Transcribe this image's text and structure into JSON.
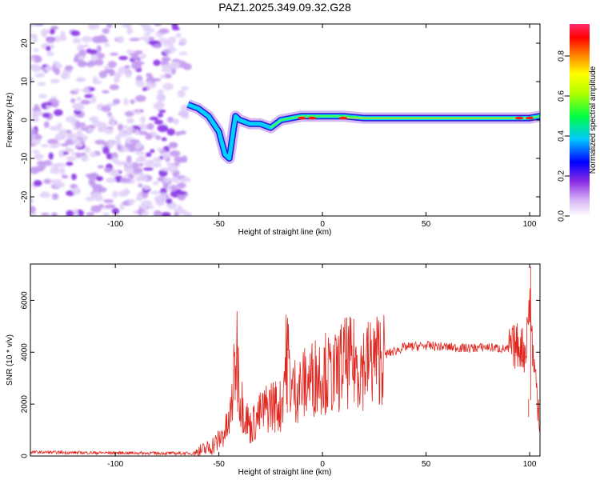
{
  "figure": {
    "title": "PAZ1.2025.349.09.32.G28"
  },
  "colors": {
    "snr_line": "#e0271f",
    "spectrum_low": "#d9c8f5",
    "spectrum_mid": "#7a1fe0",
    "trace_high": "#ff1a00"
  },
  "colorbar": {
    "label": "Normalized spectral amplitude",
    "ticks": [
      "0.0",
      "0.2",
      "0.4",
      "0.6",
      "0.8"
    ],
    "range": [
      0.0,
      0.96
    ]
  },
  "chart_data": [
    {
      "type": "heatmap",
      "title": "PAZ1.2025.349.09.32.G28",
      "xlabel": "Height of straight line (km)",
      "ylabel": "Frequency (Hz)",
      "xlim": [
        -141,
        105
      ],
      "ylim": [
        -25,
        25
      ],
      "xticks": [
        -100,
        -50,
        0,
        50,
        100
      ],
      "xtick_labels": [
        "-100",
        "-50",
        "0",
        "50",
        "100"
      ],
      "yticks": [
        -20,
        -10,
        0,
        10,
        20
      ],
      "ytick_labels": [
        "-20",
        "-10",
        "0",
        "10",
        "20"
      ],
      "noise_region_x": [
        -141,
        -65
      ],
      "signal_trace": {
        "description_points_x": [
          -65,
          -60,
          -55,
          -50,
          -47,
          -45,
          -42,
          -40,
          -35,
          -30,
          -25,
          -20,
          -10,
          0,
          10,
          20,
          50,
          100,
          105
        ],
        "description_points_y": [
          4,
          3,
          1,
          -3,
          -9,
          -10,
          1,
          0,
          -1,
          -1,
          -2,
          0,
          1,
          1,
          1,
          0.5,
          0.5,
          0.5,
          1
        ]
      }
    },
    {
      "type": "line",
      "title": "",
      "xlabel": "Height of straight line (km)",
      "ylabel": "SNR (10 * v/v)",
      "xlim": [
        -141,
        105
      ],
      "ylim": [
        0,
        7400
      ],
      "xticks": [
        -100,
        -50,
        0,
        50,
        100
      ],
      "xtick_labels": [
        "-100",
        "-50",
        "0",
        "50",
        "100"
      ],
      "yticks": [
        0,
        2000,
        4000,
        6000
      ],
      "ytick_labels": [
        "0",
        "2000",
        "4000",
        "6000"
      ],
      "series": [
        {
          "name": "SNR",
          "x": [
            -141,
            -120,
            -100,
            -80,
            -62,
            -55,
            -50,
            -45,
            -41,
            -40,
            -35,
            -30,
            -25,
            -20,
            -17,
            -15,
            -10,
            -5,
            0,
            5,
            10,
            20,
            30,
            40,
            50,
            60,
            70,
            80,
            90,
            95,
            98,
            100,
            102,
            105
          ],
          "y": [
            150,
            130,
            120,
            110,
            100,
            300,
            600,
            1200,
            4250,
            2300,
            1100,
            1600,
            2000,
            1900,
            4150,
            2500,
            2700,
            3000,
            3300,
            3000,
            3600,
            3500,
            3900,
            4200,
            4250,
            4200,
            4150,
            4200,
            4100,
            4300,
            4000,
            6000,
            3500,
            1500
          ]
        }
      ]
    }
  ]
}
